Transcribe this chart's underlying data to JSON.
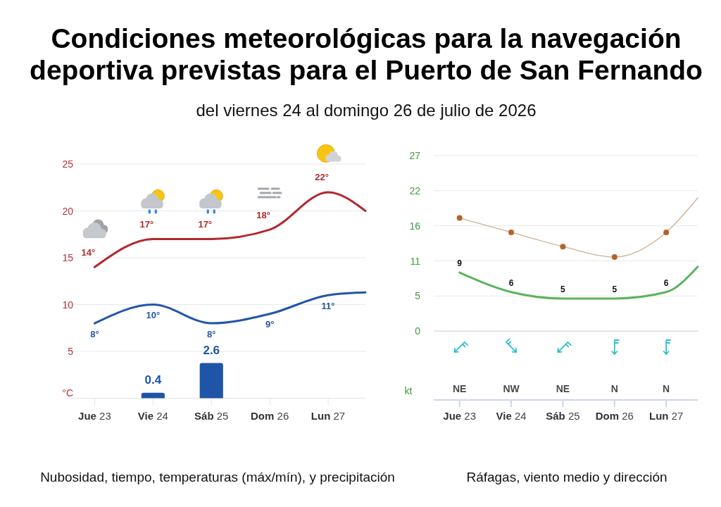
{
  "chart_data": [
    {
      "type": "line",
      "title": "Condiciones meteorológicas para la navegación deportiva previstas para el Puerto de San Fernando",
      "subtitle": "del viernes 24 al domingo 26 de julio de 2026",
      "ylabel": "°C",
      "annotations": [
        "Nubosidad, tiempo, temperaturas (máx/mín), y precipitación"
      ],
      "x": [
        "2026-07-23",
        "2026-07-24",
        "2026-07-25",
        "2026-07-26",
        "2026-07-27",
        "2026-07-27T15:20"
      ],
      "xlim": [
        "2026-07-22T12:00",
        "2026-07-27T15:20"
      ],
      "xticks": [
        {
          "value": "2026-07-23",
          "label": "Jue 23"
        },
        {
          "value": "2026-07-24",
          "label": "Vie 24"
        },
        {
          "value": "2026-07-25",
          "label": "Sáb 25"
        },
        {
          "value": "2026-07-26",
          "label": "Dom 26"
        },
        {
          "value": "2026-07-27",
          "label": "Lun 27"
        }
      ],
      "ylim": [
        0,
        25
      ],
      "yticks": [
        5,
        10,
        15,
        20,
        25
      ],
      "y2lim": [
        0,
        17.3
      ],
      "grid": "y",
      "series": [
        {
          "color": "#b3282c",
          "values": [
            14,
            17,
            17,
            18,
            22,
            20
          ],
          "value_labels": [
            "14°",
            "17°",
            "17°",
            "18°",
            "22°",
            null
          ]
        },
        {
          "color": "#2356a6",
          "values": [
            8,
            10,
            8,
            9,
            11,
            11.3
          ],
          "value_labels": [
            "8°",
            "10°",
            "8°",
            "9°",
            "11°",
            null
          ]
        },
        {
          "type": "bar",
          "axis": "y2",
          "color": "#1f55a7",
          "x": [
            "2026-07-24",
            "2026-07-25"
          ],
          "values": [
            0.4,
            2.6
          ],
          "value_labels": [
            "0.4",
            "2.6"
          ]
        }
      ]
    },
    {
      "type": "line",
      "ylabel": "kt",
      "annotations": [
        "Ráfagas, viento medio y dirección",
        "NE",
        "NW",
        "NE",
        "N",
        "N"
      ],
      "x": [
        "2026-07-23",
        "2026-07-24",
        "2026-07-25",
        "2026-07-26",
        "2026-07-27",
        "2026-07-27T14:40"
      ],
      "xlim": [
        "2026-07-22T12:00",
        "2026-07-27T14:40"
      ],
      "xticks": [
        {
          "value": "2026-07-23",
          "label": "Jue 23"
        },
        {
          "value": "2026-07-24",
          "label": "Vie 24"
        },
        {
          "value": "2026-07-25",
          "label": "Sáb 25"
        },
        {
          "value": "2026-07-26",
          "label": "Dom 26"
        },
        {
          "value": "2026-07-27",
          "label": "Lun 27"
        }
      ],
      "ylim": [
        -10.6,
        27
      ],
      "yticks": [
        0,
        {
          "value": 5.4,
          "label": "5"
        },
        {
          "value": 10.8,
          "label": "11"
        },
        {
          "value": 16.2,
          "label": "16"
        },
        {
          "value": 21.6,
          "label": "22"
        },
        27
      ],
      "grid": "y",
      "series": [
        {
          "color": "#cfb18f",
          "values": [
            17.4,
            15.2,
            13,
            11.4,
            15.2,
            20.5
          ]
        },
        {
          "type": "scatter",
          "color": "#b5622a",
          "marker": "circle",
          "x": [
            "2026-07-23",
            "2026-07-24",
            "2026-07-25",
            "2026-07-26",
            "2026-07-27"
          ],
          "values": [
            17.4,
            15.2,
            13,
            11.4,
            15.2
          ]
        },
        {
          "color": "#5cb35c",
          "values": [
            9,
            6,
            5,
            5,
            6,
            9.9
          ],
          "value_labels": [
            "9",
            "6",
            "5",
            "5",
            "6",
            null
          ]
        }
      ]
    }
  ]
}
